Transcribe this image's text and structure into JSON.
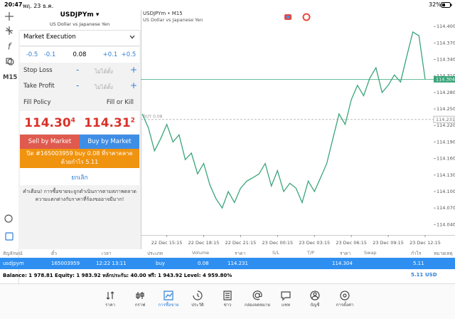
{
  "status_bar": {
    "time": "20:47",
    "date": "พฤ. 23 ธ.ค.",
    "battery": "32%"
  },
  "toolbar": {
    "timeframe": "M15"
  },
  "order": {
    "symbol": "USDJPYm",
    "description": "US Dollar vs Japanese Yen",
    "execution": "Market Execution",
    "volume_steps": [
      "-0.5",
      "-0.1",
      "0.08",
      "+0.1",
      "+0.5"
    ],
    "stop_loss": {
      "label": "Stop Loss",
      "value": "ไม่ได้ตั้ง"
    },
    "take_profit": {
      "label": "Take Profit",
      "value": "ไม่ได้ตั้ง"
    },
    "fill_policy": {
      "label": "Fill Policy",
      "value": "Fill or Kill"
    },
    "bid": {
      "main": "114.30",
      "small": "4"
    },
    "ask": {
      "main": "114.31",
      "small": "2"
    },
    "sell_button": "Sell by Market",
    "buy_button": "Buy by Market",
    "close_message": "ปิด #165003959 buy 0.08 ที่ราคาตลาดด้วยกำไร 5.11",
    "cancel": "ยกเลิก",
    "warning": "คำเตือน! การซื้อขายจะถูกดำเนินการตามสภาพตลาด ความแตกต่างกับราคาที่ร้องขออาจมีมาก!"
  },
  "chart_data": {
    "type": "line",
    "title": "USDJPYm • M15",
    "subtitle": "US Dollar vs Japanese Yen",
    "categories": [
      null,
      null,
      null,
      null,
      "22 Dec 15:15",
      null,
      null,
      null,
      null,
      null,
      "22 Dec 18:15",
      null,
      null,
      null,
      null,
      null,
      "22 Dec 21:15",
      null,
      null,
      null,
      null,
      null,
      "23 Dec 00:15",
      null,
      null,
      null,
      null,
      null,
      "23 Dec 03:15",
      null,
      null,
      null,
      null,
      null,
      "23 Dec 06:15",
      null,
      null,
      null,
      null,
      null,
      "23 Dec 09:15",
      null,
      null,
      null,
      null,
      null,
      "23 Dec 12:15"
    ],
    "values": [
      114.241,
      114.216,
      114.174,
      114.196,
      114.222,
      114.19,
      114.203,
      114.158,
      114.17,
      114.132,
      114.151,
      114.112,
      114.087,
      114.07,
      114.1,
      114.08,
      114.106,
      114.119,
      114.125,
      114.132,
      114.151,
      114.11,
      114.138,
      114.1,
      114.115,
      114.106,
      114.08,
      114.119,
      114.1,
      114.125,
      114.151,
      114.196,
      114.241,
      114.222,
      114.267,
      114.293,
      114.274,
      114.306,
      114.325,
      114.28,
      114.293,
      114.312,
      114.299,
      114.345,
      114.39,
      114.383,
      114.304
    ],
    "color": "#3aa57a",
    "ylim": [
      114.021,
      114.43
    ],
    "yticks": [
      {
        "value": 114.4,
        "label": "114.400"
      },
      {
        "value": 114.37,
        "label": "114.370"
      },
      {
        "value": 114.34,
        "label": "114.340"
      },
      {
        "value": 114.31,
        "label": "114.310"
      },
      {
        "value": 114.28,
        "label": "114.280"
      },
      {
        "value": 114.25,
        "label": "114.250"
      },
      {
        "value": 114.22,
        "label": "114.220"
      },
      {
        "value": 114.19,
        "label": "114.190"
      },
      {
        "value": 114.16,
        "label": "114.160"
      },
      {
        "value": 114.13,
        "label": "114.130"
      },
      {
        "value": 114.1,
        "label": "114.100"
      },
      {
        "value": 114.07,
        "label": "114.070"
      },
      {
        "value": 114.04,
        "label": "114.040"
      }
    ],
    "bid_line": 114.304,
    "position_line": {
      "label": "BUY 0.08",
      "value": 114.231
    },
    "grid": false
  },
  "positions": {
    "columns": [
      "สัญลักษณ์",
      "ตั๋ว",
      "เวลา",
      "ประเภท",
      "Volume",
      "ราคา",
      "S/L",
      "T/P",
      "ราคา",
      "Swap",
      "กำไร",
      "หมายเหตุ"
    ],
    "rows": [
      [
        "usdjpym",
        "165003959",
        "12:22 13:11",
        "buy",
        "0.08",
        "114.231",
        null,
        null,
        "114.304",
        null,
        "5.11",
        null
      ]
    ]
  },
  "account": {
    "summary": "Balance: 1 978.81 Equity: 1 983.92 หลักประกัน: 40.00 ฟรี: 1 943.92 Level: 4 959.80%",
    "profit": "5.11",
    "currency": "USD"
  },
  "tabs": [
    "ราคา",
    "กราฟ",
    "การซื้อขาย",
    "ประวัติ",
    "ข่าว",
    "กล่องจดหมาย",
    "แชท",
    "บัญชี",
    "การตั้งค่า"
  ],
  "active_tab": 2
}
